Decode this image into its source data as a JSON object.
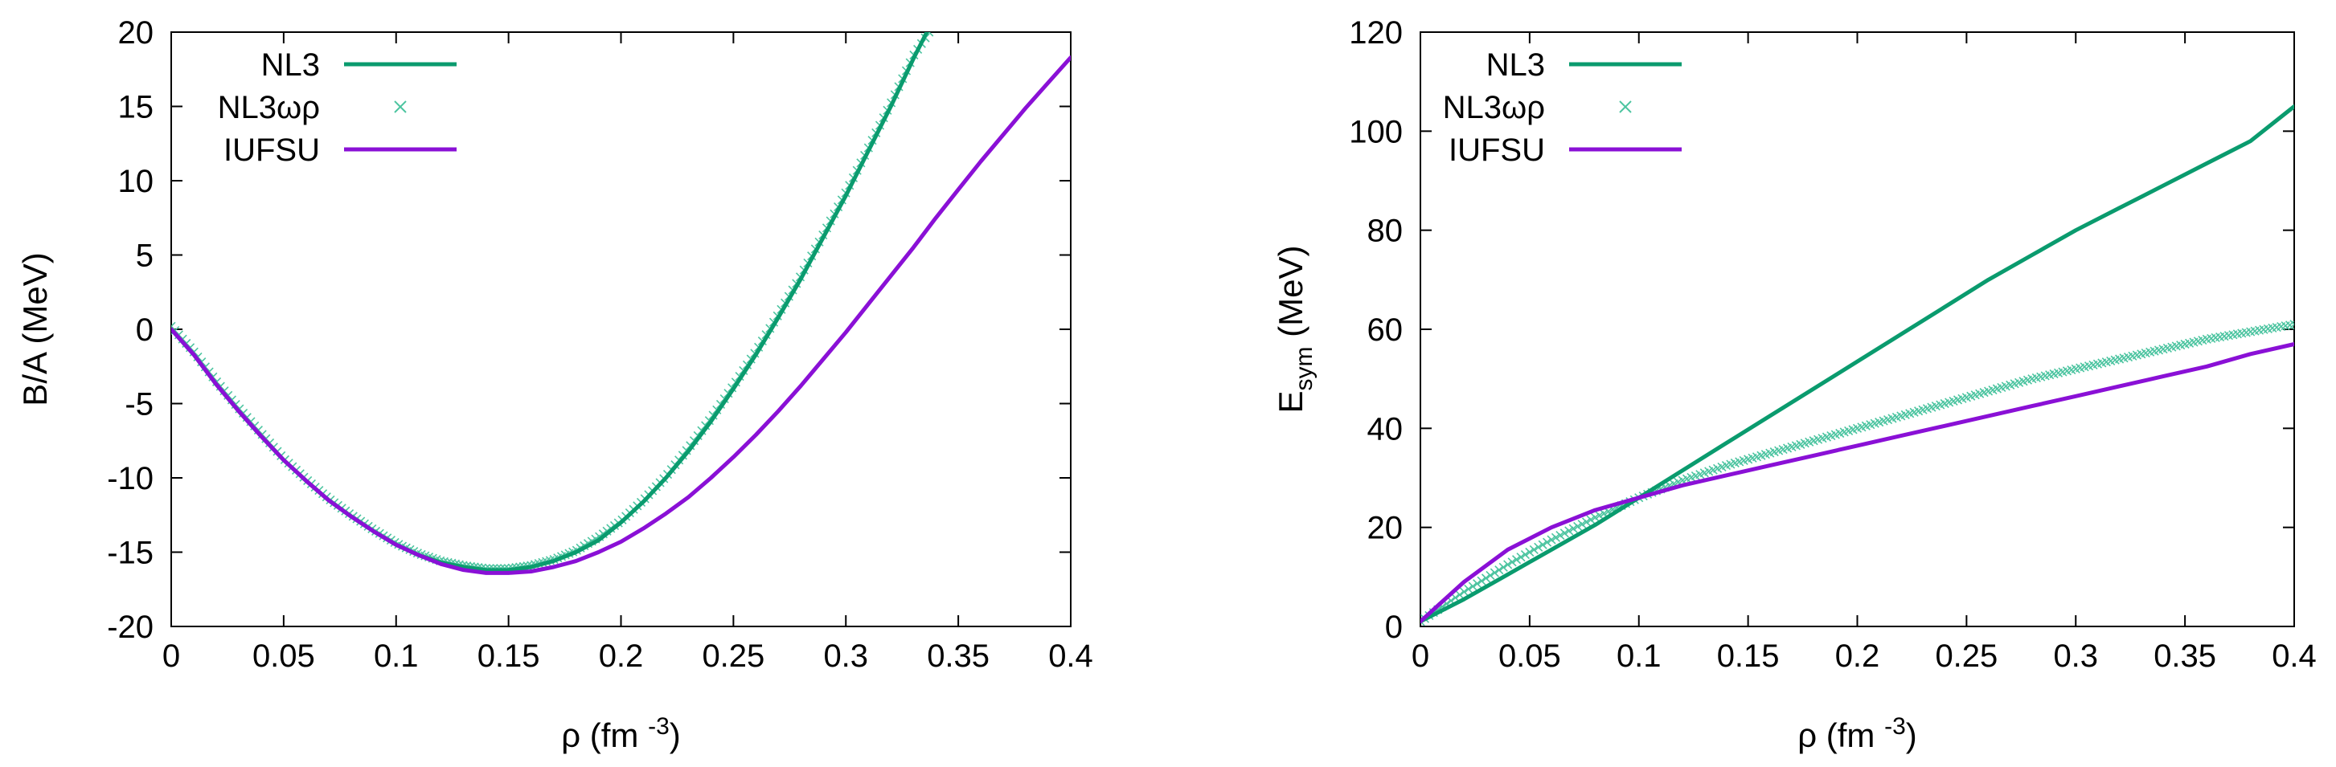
{
  "colors": {
    "nl3": "#0a9b6e",
    "nl3wr": "#4cc4a0",
    "iufsu": "#8a10d6",
    "axis": "#000000"
  },
  "chart_data": [
    {
      "id": "ba",
      "type": "line",
      "title": "",
      "xlabel": "ρ (fm",
      "xlabel_sup": "-3",
      "xlabel_close": ")",
      "ylabel": "B/A (MeV)",
      "xlim": [
        0,
        0.4
      ],
      "ylim": [
        -20,
        20
      ],
      "xticks": [
        0,
        0.05,
        0.1,
        0.15,
        0.2,
        0.25,
        0.3,
        0.35,
        0.4
      ],
      "xtick_labels": [
        "0",
        "0.05",
        "0.1",
        "0.15",
        "0.2",
        "0.25",
        "0.3",
        "0.35",
        "0.4"
      ],
      "yticks": [
        -20,
        -15,
        -10,
        -5,
        0,
        5,
        10,
        15,
        20
      ],
      "ytick_labels": [
        "-20",
        "-15",
        "-10",
        "-5",
        "0",
        "5",
        "10",
        "15",
        "20"
      ],
      "legend_position": "top-left",
      "series": [
        {
          "name": "NL3",
          "style": "line",
          "x": [
            0,
            0.01,
            0.02,
            0.03,
            0.04,
            0.05,
            0.06,
            0.07,
            0.08,
            0.09,
            0.1,
            0.11,
            0.12,
            0.13,
            0.14,
            0.15,
            0.16,
            0.17,
            0.18,
            0.19,
            0.2,
            0.21,
            0.22,
            0.23,
            0.24,
            0.25,
            0.26,
            0.27,
            0.28,
            0.29,
            0.3,
            0.31,
            0.32,
            0.33,
            0.336
          ],
          "values": [
            0,
            -1.7,
            -3.7,
            -5.5,
            -7.2,
            -8.8,
            -10.2,
            -11.5,
            -12.6,
            -13.6,
            -14.5,
            -15.2,
            -15.7,
            -16.0,
            -16.2,
            -16.2,
            -16.0,
            -15.6,
            -15.0,
            -14.2,
            -13.0,
            -11.6,
            -10.0,
            -8.2,
            -6.2,
            -4.0,
            -1.7,
            0.8,
            3.4,
            6.2,
            9.0,
            12.0,
            15.0,
            18.2,
            20
          ]
        },
        {
          "name": "NL3ωρ",
          "style": "markers",
          "x": [
            0,
            0.01,
            0.02,
            0.03,
            0.04,
            0.05,
            0.06,
            0.07,
            0.08,
            0.09,
            0.1,
            0.11,
            0.12,
            0.13,
            0.14,
            0.15,
            0.16,
            0.17,
            0.18,
            0.19,
            0.2,
            0.21,
            0.22,
            0.23,
            0.24,
            0.25,
            0.26,
            0.27,
            0.28,
            0.29,
            0.3,
            0.31,
            0.32,
            0.33,
            0.337
          ],
          "values": [
            0.2,
            -1.5,
            -3.5,
            -5.3,
            -7.0,
            -8.7,
            -10.1,
            -11.4,
            -12.5,
            -13.5,
            -14.4,
            -15.1,
            -15.6,
            -15.9,
            -16.1,
            -16.1,
            -15.9,
            -15.5,
            -14.9,
            -14.0,
            -12.9,
            -11.5,
            -9.9,
            -8.0,
            -6.0,
            -3.8,
            -1.5,
            1.0,
            3.6,
            6.4,
            9.2,
            12.2,
            15.2,
            18.4,
            20
          ]
        },
        {
          "name": "IUFSU",
          "style": "line",
          "x": [
            0,
            0.01,
            0.02,
            0.03,
            0.04,
            0.05,
            0.06,
            0.07,
            0.08,
            0.09,
            0.1,
            0.11,
            0.12,
            0.13,
            0.14,
            0.15,
            0.16,
            0.17,
            0.18,
            0.19,
            0.2,
            0.21,
            0.22,
            0.23,
            0.24,
            0.25,
            0.26,
            0.27,
            0.28,
            0.29,
            0.3,
            0.31,
            0.32,
            0.33,
            0.34,
            0.35,
            0.36,
            0.37,
            0.38,
            0.39,
            0.4
          ],
          "values": [
            0,
            -1.7,
            -3.7,
            -5.5,
            -7.2,
            -8.8,
            -10.2,
            -11.5,
            -12.6,
            -13.6,
            -14.5,
            -15.2,
            -15.8,
            -16.2,
            -16.4,
            -16.4,
            -16.3,
            -16.0,
            -15.6,
            -15.0,
            -14.3,
            -13.4,
            -12.4,
            -11.3,
            -10.0,
            -8.6,
            -7.1,
            -5.5,
            -3.8,
            -2.0,
            -0.2,
            1.7,
            3.6,
            5.5,
            7.5,
            9.4,
            11.3,
            13.1,
            14.9,
            16.6,
            18.3
          ]
        }
      ]
    },
    {
      "id": "esym",
      "type": "line",
      "title": "",
      "xlabel": "ρ (fm",
      "xlabel_sup": "-3",
      "xlabel_close": ")",
      "ylabel": "E",
      "ylabel_sub": "sym",
      "ylabel_rest": " (MeV)",
      "xlim": [
        0,
        0.4
      ],
      "ylim": [
        0,
        120
      ],
      "xticks": [
        0,
        0.05,
        0.1,
        0.15,
        0.2,
        0.25,
        0.3,
        0.35,
        0.4
      ],
      "xtick_labels": [
        "0",
        "0.05",
        "0.1",
        "0.15",
        "0.2",
        "0.25",
        "0.3",
        "0.35",
        "0.4"
      ],
      "yticks": [
        0,
        20,
        40,
        60,
        80,
        100,
        120
      ],
      "ytick_labels": [
        "0",
        "20",
        "40",
        "60",
        "80",
        "100",
        "120"
      ],
      "legend_position": "top-left",
      "series": [
        {
          "name": "NL3",
          "style": "line",
          "x": [
            0,
            0.02,
            0.04,
            0.06,
            0.08,
            0.1,
            0.12,
            0.14,
            0.16,
            0.18,
            0.2,
            0.22,
            0.24,
            0.26,
            0.28,
            0.3,
            0.32,
            0.34,
            0.36,
            0.38,
            0.4
          ],
          "values": [
            1,
            5.5,
            10.5,
            15.5,
            20.5,
            26,
            31.5,
            37,
            42.5,
            48,
            53.5,
            59,
            64.5,
            70,
            75,
            80,
            84.5,
            89,
            93.5,
            98,
            105
          ]
        },
        {
          "name": "NL3ωρ",
          "style": "markers",
          "x": [
            0,
            0.02,
            0.04,
            0.06,
            0.08,
            0.1,
            0.12,
            0.14,
            0.16,
            0.18,
            0.2,
            0.22,
            0.24,
            0.26,
            0.28,
            0.3,
            0.32,
            0.34,
            0.36,
            0.38,
            0.4
          ],
          "values": [
            1,
            7,
            12.5,
            17.5,
            22,
            26,
            29.5,
            32.5,
            35,
            37.5,
            40,
            42.5,
            45,
            47.5,
            50,
            52,
            54,
            56,
            58,
            59.5,
            61
          ]
        },
        {
          "name": "IUFSU",
          "style": "line",
          "x": [
            0,
            0.02,
            0.04,
            0.06,
            0.08,
            0.1,
            0.12,
            0.14,
            0.16,
            0.18,
            0.2,
            0.22,
            0.24,
            0.26,
            0.28,
            0.3,
            0.32,
            0.34,
            0.36,
            0.38,
            0.4
          ],
          "values": [
            1,
            9,
            15.5,
            20,
            23.5,
            26,
            28.5,
            30.5,
            32.5,
            34.5,
            36.5,
            38.5,
            40.5,
            42.5,
            44.5,
            46.5,
            48.5,
            50.5,
            52.5,
            55,
            57
          ]
        }
      ]
    }
  ]
}
